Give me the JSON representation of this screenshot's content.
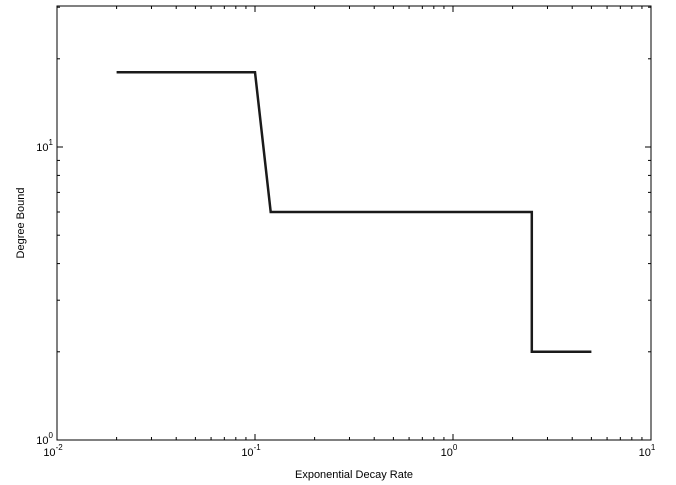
{
  "chart_data": {
    "type": "line",
    "xscale": "log",
    "yscale": "log",
    "xlabel": "Exponential Decay Rate",
    "ylabel": "Degree Bound",
    "xlim": [
      0.01,
      10
    ],
    "ylim": [
      1,
      32
    ],
    "x_ticks": [
      {
        "value": 0.01,
        "base": "10",
        "exp": "-2"
      },
      {
        "value": 0.1,
        "base": "10",
        "exp": "-1"
      },
      {
        "value": 1,
        "base": "10",
        "exp": "0"
      },
      {
        "value": 10,
        "base": "10",
        "exp": "1"
      }
    ],
    "y_ticks": [
      {
        "value": 1,
        "base": "10",
        "exp": "0"
      },
      {
        "value": 10,
        "base": "10",
        "exp": "1"
      }
    ],
    "grid": false,
    "line_color": "#1a1a1a",
    "series": [
      {
        "x": [
          0.02,
          0.1,
          0.12,
          2.5,
          2.5,
          5
        ],
        "y": [
          18,
          18,
          6,
          6,
          2,
          2
        ]
      }
    ]
  }
}
